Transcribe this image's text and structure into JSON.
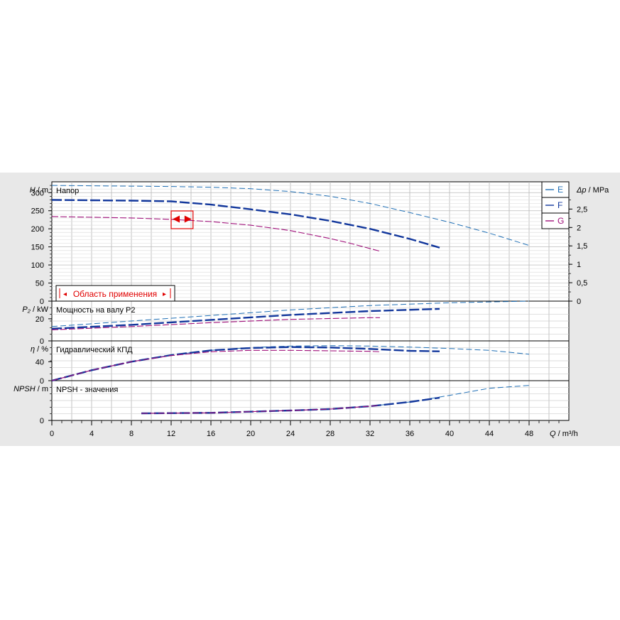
{
  "chart_data": {
    "type": "line",
    "x_axis": {
      "label_sym": "Q",
      "label_unit": "m³/h",
      "ticks": [
        0,
        4,
        8,
        12,
        16,
        20,
        24,
        28,
        32,
        36,
        40,
        44,
        48
      ],
      "range": [
        0,
        52
      ]
    },
    "legend": [
      {
        "name": "E",
        "color": "#1f6fb5"
      },
      {
        "name": "F",
        "color": "#12379c"
      },
      {
        "name": "G",
        "color": "#a0107a"
      }
    ],
    "panels": [
      {
        "id": "head",
        "title": "Напор",
        "axis_sym": "H",
        "axis_unit": "m",
        "range": [
          0,
          330
        ],
        "ticks": [
          "0",
          "50",
          "100",
          "150",
          "200",
          "250",
          "300"
        ],
        "tick_values": [
          0,
          50,
          100,
          150,
          200,
          250,
          300
        ],
        "right_axis": {
          "sym": "Δp",
          "unit": "MPa",
          "ticks": [
            "0",
            "0,5",
            "1",
            "1,5",
            "2",
            "2,5"
          ],
          "tick_values": [
            0,
            0.5,
            1,
            1.5,
            2,
            2.5
          ],
          "range": [
            0,
            3.24
          ]
        },
        "series": [
          {
            "name": "E",
            "x": [
              0,
              4,
              8,
              12,
              16,
              20,
              24,
              28,
              32,
              36,
              40,
              44,
              48
            ],
            "y": [
              320,
              319,
              318,
              317,
              315,
              311,
              303,
              290,
              270,
              245,
              218,
              188,
              154
            ]
          },
          {
            "name": "F",
            "x": [
              0,
              4,
              8,
              12,
              16,
              20,
              24,
              28,
              32,
              36,
              39
            ],
            "y": [
              280,
              279,
              278,
              276,
              267,
              254,
              240,
              222,
              200,
              172,
              148
            ]
          },
          {
            "name": "G",
            "x": [
              0,
              4,
              8,
              12,
              16,
              20,
              24,
              28,
              30,
              33
            ],
            "y": [
              234,
              232,
              230,
              226,
              220,
              210,
              195,
              173,
              160,
              138
            ]
          }
        ],
        "operating_range_label": "Область применения",
        "operating_range": [
          12,
          14.2
        ]
      },
      {
        "id": "power",
        "title": "Мощность на валу P2",
        "axis_sym": "P₂",
        "axis_unit": "kW",
        "range": [
          0,
          36
        ],
        "ticks": [
          "0",
          "20"
        ],
        "tick_values": [
          0,
          20
        ],
        "series": [
          {
            "name": "E",
            "x": [
              0,
              8,
              16,
              24,
              32,
              40,
              48
            ],
            "y": [
              13,
              18,
              23,
              28,
              32,
              34.5,
              36
            ]
          },
          {
            "name": "F",
            "x": [
              0,
              8,
              16,
              24,
              32,
              39
            ],
            "y": [
              11,
              14.5,
              19,
              23.5,
              27,
              29
            ]
          },
          {
            "name": "G",
            "x": [
              0,
              8,
              16,
              24,
              32,
              33
            ],
            "y": [
              10,
              13,
              16.5,
              19.5,
              21,
              21
            ]
          }
        ]
      },
      {
        "id": "efficiency",
        "title": "Гидравлический КПД",
        "axis_sym": "η",
        "axis_unit": "%",
        "range": [
          0,
          84
        ],
        "ticks": [
          "0",
          "40"
        ],
        "tick_values": [
          0,
          40
        ],
        "series": [
          {
            "name": "E",
            "x": [
              0,
              4,
              8,
              12,
              16,
              20,
              24,
              28,
              32,
              36,
              40,
              44,
              48
            ],
            "y": [
              0,
              22,
              40,
              54,
              64,
              70,
              73,
              74,
              73,
              71,
              68,
              64,
              56
            ]
          },
          {
            "name": "F",
            "x": [
              0,
              4,
              8,
              12,
              16,
              20,
              24,
              28,
              32,
              36,
              39
            ],
            "y": [
              0,
              22,
              40,
              54,
              64,
              69,
              71,
              70,
              67,
              63,
              62
            ]
          },
          {
            "name": "G",
            "x": [
              0,
              4,
              8,
              12,
              16,
              20,
              24,
              28,
              32,
              33
            ],
            "y": [
              0,
              22,
              40,
              53,
              61,
              64,
              64,
              63,
              62,
              61
            ]
          }
        ]
      },
      {
        "id": "npsh",
        "title": "NPSH - значения",
        "axis_sym": "NPSH",
        "axis_unit": "m",
        "range": [
          0,
          4.2
        ],
        "ticks": [
          "0"
        ],
        "tick_values": [
          0
        ],
        "series": [
          {
            "name": "E",
            "x": [
              9,
              16,
              24,
              28,
              32,
              36,
              40,
              44,
              48
            ],
            "y": [
              0.75,
              0.8,
              1.05,
              1.2,
              1.5,
              1.95,
              2.65,
              3.4,
              3.7
            ]
          },
          {
            "name": "F",
            "x": [
              9,
              16,
              24,
              28,
              32,
              36,
              39
            ],
            "y": [
              0.75,
              0.8,
              1.05,
              1.2,
              1.5,
              1.95,
              2.4
            ]
          },
          {
            "name": "G",
            "x": [
              9,
              16,
              24,
              28,
              32,
              33
            ],
            "y": [
              0.75,
              0.8,
              1.05,
              1.2,
              1.5,
              1.6
            ]
          }
        ]
      }
    ]
  }
}
